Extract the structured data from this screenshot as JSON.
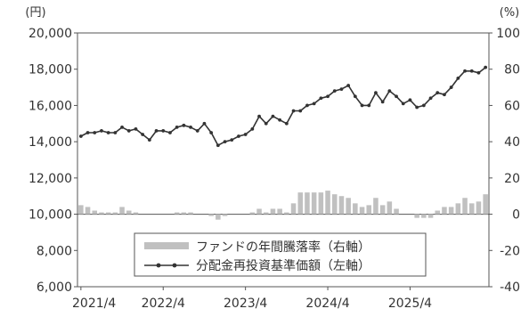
{
  "chart_data": {
    "type": "line",
    "left_axis": {
      "unit": "(円)",
      "ylim": [
        6000,
        20000
      ],
      "ticks": [
        6000,
        8000,
        10000,
        12000,
        14000,
        16000,
        18000,
        20000
      ],
      "tick_labels": [
        "6,000",
        "8,000",
        "10,000",
        "12,000",
        "14,000",
        "16,000",
        "18,000",
        "20,000"
      ]
    },
    "right_axis": {
      "unit": "(%)",
      "ylim": [
        -40,
        100
      ],
      "ticks": [
        -40,
        -20,
        0,
        20,
        40,
        60,
        80,
        100
      ],
      "tick_labels": [
        "-40",
        "-20",
        "0",
        "20",
        "40",
        "60",
        "80",
        "100"
      ]
    },
    "x_tick_labels": [
      "2021/4",
      "2022/4",
      "2023/4",
      "2024/4",
      "2025/4"
    ],
    "legend": {
      "placement": "bottom-center",
      "entries": [
        "ファンドの年間騰落率（右軸）",
        "分配金再投資基準価額（左軸）"
      ]
    },
    "colors": {
      "nav_line": "#333333",
      "return_bar": "#c0c0c0",
      "frame": "#555555",
      "zero_line": "#555555"
    },
    "series": [
      {
        "axis": "left",
        "type": "line",
        "dates": [
          "2021/4",
          "2021/5",
          "2021/6",
          "2021/7",
          "2021/8",
          "2021/9",
          "2021/10",
          "2021/11",
          "2021/12",
          "2022/1",
          "2022/2",
          "2022/3",
          "2022/4",
          "2022/5",
          "2022/6",
          "2022/7",
          "2022/8",
          "2022/9",
          "2022/10",
          "2022/11",
          "2022/12",
          "2023/1",
          "2023/2",
          "2023/3",
          "2023/4",
          "2023/5",
          "2023/6",
          "2023/7",
          "2023/8",
          "2023/9",
          "2023/10",
          "2023/11",
          "2023/12",
          "2024/1",
          "2024/2",
          "2024/3",
          "2024/4",
          "2024/5",
          "2024/6",
          "2024/7",
          "2024/8",
          "2024/9",
          "2024/10",
          "2024/11",
          "2024/12",
          "2025/1",
          "2025/2",
          "2025/3",
          "2025/4",
          "2025/5",
          "2025/6",
          "2025/7",
          "2025/8",
          "2025/9",
          "2025/10",
          "2025/11",
          "2025/12",
          "2026/1",
          "2026/2",
          "2026/3"
        ],
        "values": [
          14300,
          14500,
          14500,
          14600,
          14500,
          14500,
          14800,
          14600,
          14700,
          14400,
          14100,
          14600,
          14600,
          14500,
          14800,
          14900,
          14800,
          14600,
          15000,
          14500,
          13800,
          14000,
          14100,
          14300,
          14400,
          14700,
          15400,
          15000,
          15400,
          15200,
          15000,
          15700,
          15700,
          16000,
          16100,
          16400,
          16500,
          16800,
          16900,
          17100,
          16500,
          16000,
          16000,
          16700,
          16200,
          16800,
          16500,
          16100,
          16300,
          15900,
          16000,
          16400,
          16700,
          16600,
          17000,
          17500,
          17900,
          17900,
          17800,
          18100
        ]
      },
      {
        "axis": "right",
        "type": "bar",
        "dates": [
          "2021/4",
          "2021/5",
          "2021/6",
          "2021/7",
          "2021/8",
          "2021/9",
          "2021/10",
          "2021/11",
          "2021/12",
          "2022/1",
          "2022/2",
          "2022/3",
          "2022/4",
          "2022/5",
          "2022/6",
          "2022/7",
          "2022/8",
          "2022/9",
          "2022/10",
          "2022/11",
          "2022/12",
          "2023/1",
          "2023/2",
          "2023/3",
          "2023/4",
          "2023/5",
          "2023/6",
          "2023/7",
          "2023/8",
          "2023/9",
          "2023/10",
          "2023/11",
          "2023/12",
          "2024/1",
          "2024/2",
          "2024/3",
          "2024/4",
          "2024/5",
          "2024/6",
          "2024/7",
          "2024/8",
          "2024/9",
          "2024/10",
          "2024/11",
          "2024/12",
          "2025/1",
          "2025/2",
          "2025/3",
          "2025/4",
          "2025/5",
          "2025/6",
          "2025/7",
          "2025/8",
          "2025/9",
          "2025/10",
          "2025/11",
          "2025/12",
          "2026/1",
          "2026/2",
          "2026/3"
        ],
        "values": [
          5,
          4,
          2,
          1,
          1,
          1,
          4,
          2,
          1,
          0,
          0,
          0,
          0,
          0,
          1,
          1,
          1,
          0,
          0,
          -1,
          -3,
          -1,
          0,
          0,
          0,
          1,
          3,
          1,
          3,
          3,
          1,
          6,
          12,
          12,
          12,
          12,
          13,
          11,
          10,
          9,
          6,
          4,
          5,
          9,
          5,
          7,
          3,
          0,
          0,
          -2,
          -2,
          -2,
          2,
          4,
          4,
          6,
          9,
          6,
          7,
          11
        ]
      }
    ]
  }
}
